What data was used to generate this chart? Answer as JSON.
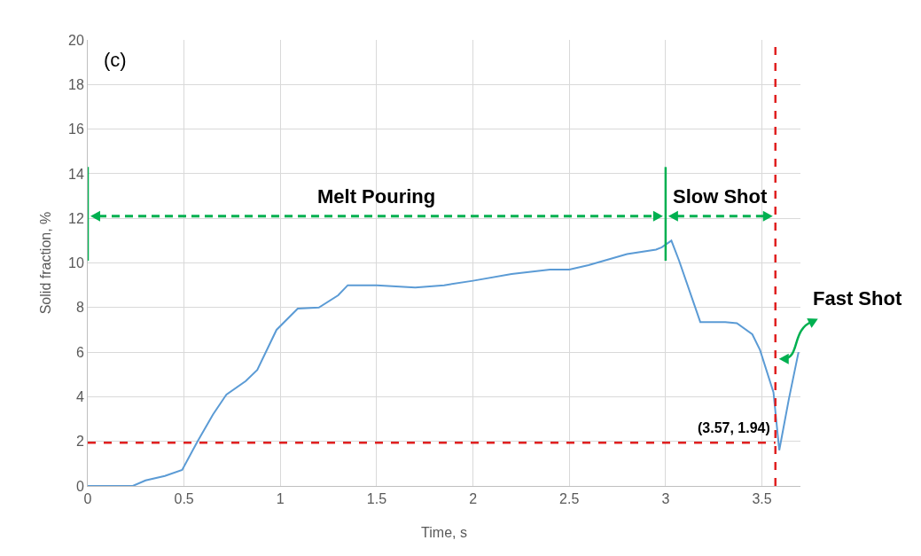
{
  "chart_data": {
    "type": "line",
    "xlabel": "Time, s",
    "ylabel": "Solid fraction, %",
    "x": [
      0,
      0.1,
      0.234,
      0.3,
      0.4,
      0.49,
      0.57,
      0.65,
      0.72,
      0.82,
      0.88,
      0.98,
      1.09,
      1.2,
      1.3,
      1.35,
      1.5,
      1.7,
      1.85,
      2.0,
      2.2,
      2.4,
      2.5,
      2.6,
      2.8,
      2.95,
      2.98,
      3.03,
      3.07,
      3.18,
      3.31,
      3.37,
      3.45,
      3.49,
      3.56,
      3.59,
      3.64,
      3.69
    ],
    "series": [
      {
        "color": "#5b9bd5",
        "values": [
          0,
          0,
          0,
          0.25,
          0.45,
          0.72,
          2.0,
          3.2,
          4.1,
          4.7,
          5.2,
          7.0,
          7.95,
          8.0,
          8.55,
          9.0,
          9.0,
          8.9,
          9.0,
          9.2,
          9.5,
          9.7,
          9.7,
          9.9,
          10.4,
          10.6,
          10.7,
          11.0,
          10.1,
          7.35,
          7.35,
          7.3,
          6.8,
          6.1,
          4.2,
          1.6,
          3.9,
          6.0
        ]
      }
    ],
    "xlim": [
      0,
      3.7
    ],
    "xticks": [
      0,
      0.5,
      1,
      1.5,
      2,
      2.5,
      3,
      3.5
    ],
    "ylim": [
      0,
      20
    ],
    "yticks": [
      0,
      2,
      4,
      6,
      8,
      10,
      12,
      14,
      16,
      18,
      20
    ],
    "grid": true,
    "marker": "none",
    "line_style": "solid",
    "ref_lines": [
      {
        "axis": "x",
        "value": 0,
        "color": "#00b050",
        "line_style": "solid"
      },
      {
        "axis": "x",
        "value": 3,
        "color": "#00b050",
        "line_style": "solid"
      },
      {
        "axis": "x",
        "value": 3.57,
        "color": "#e02020",
        "line_style": "dashed"
      },
      {
        "axis": "y",
        "value": 1.94,
        "color": "#e02020",
        "line_style": "dashed"
      }
    ],
    "annotations": [
      "(c)",
      "Melt Pouring",
      "Slow Shot",
      "Fast Shot",
      "(3.57, 1.94)"
    ]
  }
}
